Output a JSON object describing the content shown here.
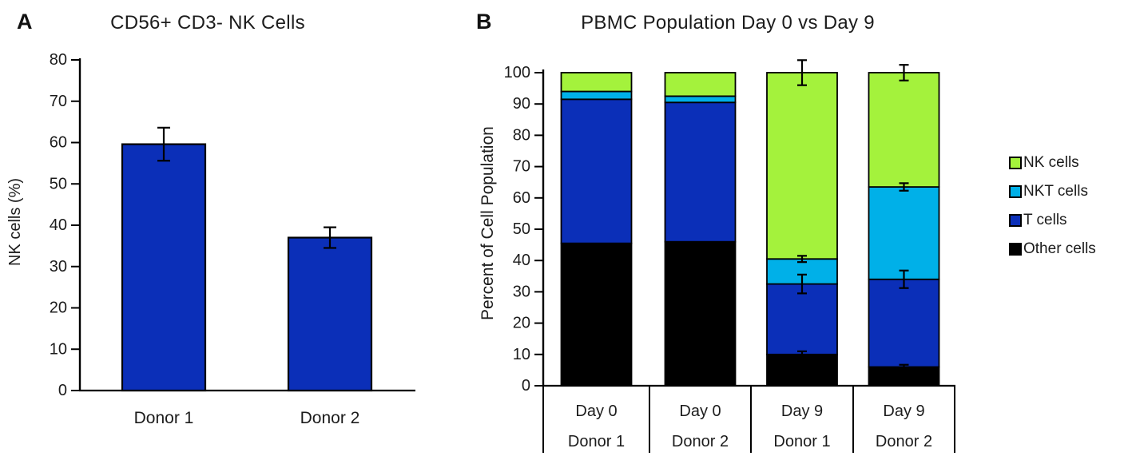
{
  "panels": {
    "a": {
      "letter": "A",
      "title": "CD56+ CD3- NK Cells"
    },
    "b": {
      "letter": "B",
      "title": "PBMC Population Day 0 vs Day 9"
    }
  },
  "legend": {
    "items": [
      {
        "label": "NK cells",
        "color": "#a4f23c"
      },
      {
        "label": "NKT cells",
        "color": "#00b0e8"
      },
      {
        "label": "T cells",
        "color": "#0b2fb8"
      },
      {
        "label": "Other cells",
        "color": "#000000"
      }
    ]
  },
  "chart_data": [
    {
      "id": "nk-cells-bar-chart",
      "type": "bar",
      "title": "CD56+ CD3- NK Cells",
      "xlabel": "",
      "ylabel": "NK cells (%)",
      "categories": [
        "Donor 1",
        "Donor 2"
      ],
      "values": [
        59.6,
        37
      ],
      "errors": [
        4,
        2.5
      ],
      "ylim": [
        0,
        80
      ],
      "ytick_step": 10,
      "bar_color": "#0b2fb8",
      "bar_border_color": "#000000",
      "grid": false,
      "legend_position": "none"
    },
    {
      "id": "pbmc-stacked-bar-chart",
      "type": "bar",
      "stacked": true,
      "title": "PBMC Population Day 0 vs Day 9",
      "xlabel": "",
      "ylabel": "Percent of Cell Population",
      "categories": [
        [
          "Day 0",
          "Donor 1"
        ],
        [
          "Day 0",
          "Donor 2"
        ],
        [
          "Day 9",
          "Donor 1"
        ],
        [
          "Day 9",
          "Donor 2"
        ]
      ],
      "series": [
        {
          "name": "Other cells",
          "color": "#000000",
          "values": [
            45.5,
            46,
            10,
            6
          ],
          "errors": [
            null,
            null,
            1,
            0.7
          ]
        },
        {
          "name": "T cells",
          "color": "#0b2fb8",
          "values": [
            46,
            44.5,
            22.5,
            28
          ],
          "errors": [
            null,
            null,
            3,
            2.8
          ]
        },
        {
          "name": "NKT cells",
          "color": "#00b0e8",
          "values": [
            2.5,
            2,
            8,
            29.5
          ],
          "errors": [
            null,
            null,
            1,
            1.2
          ]
        },
        {
          "name": "NK cells",
          "color": "#a4f23c",
          "values": [
            6,
            7.5,
            59.5,
            36.5
          ],
          "errors": [
            null,
            null,
            4,
            2.5
          ]
        }
      ],
      "ylim": [
        0,
        100
      ],
      "ytick_step": 10,
      "grid": false,
      "legend_position": "right"
    }
  ]
}
